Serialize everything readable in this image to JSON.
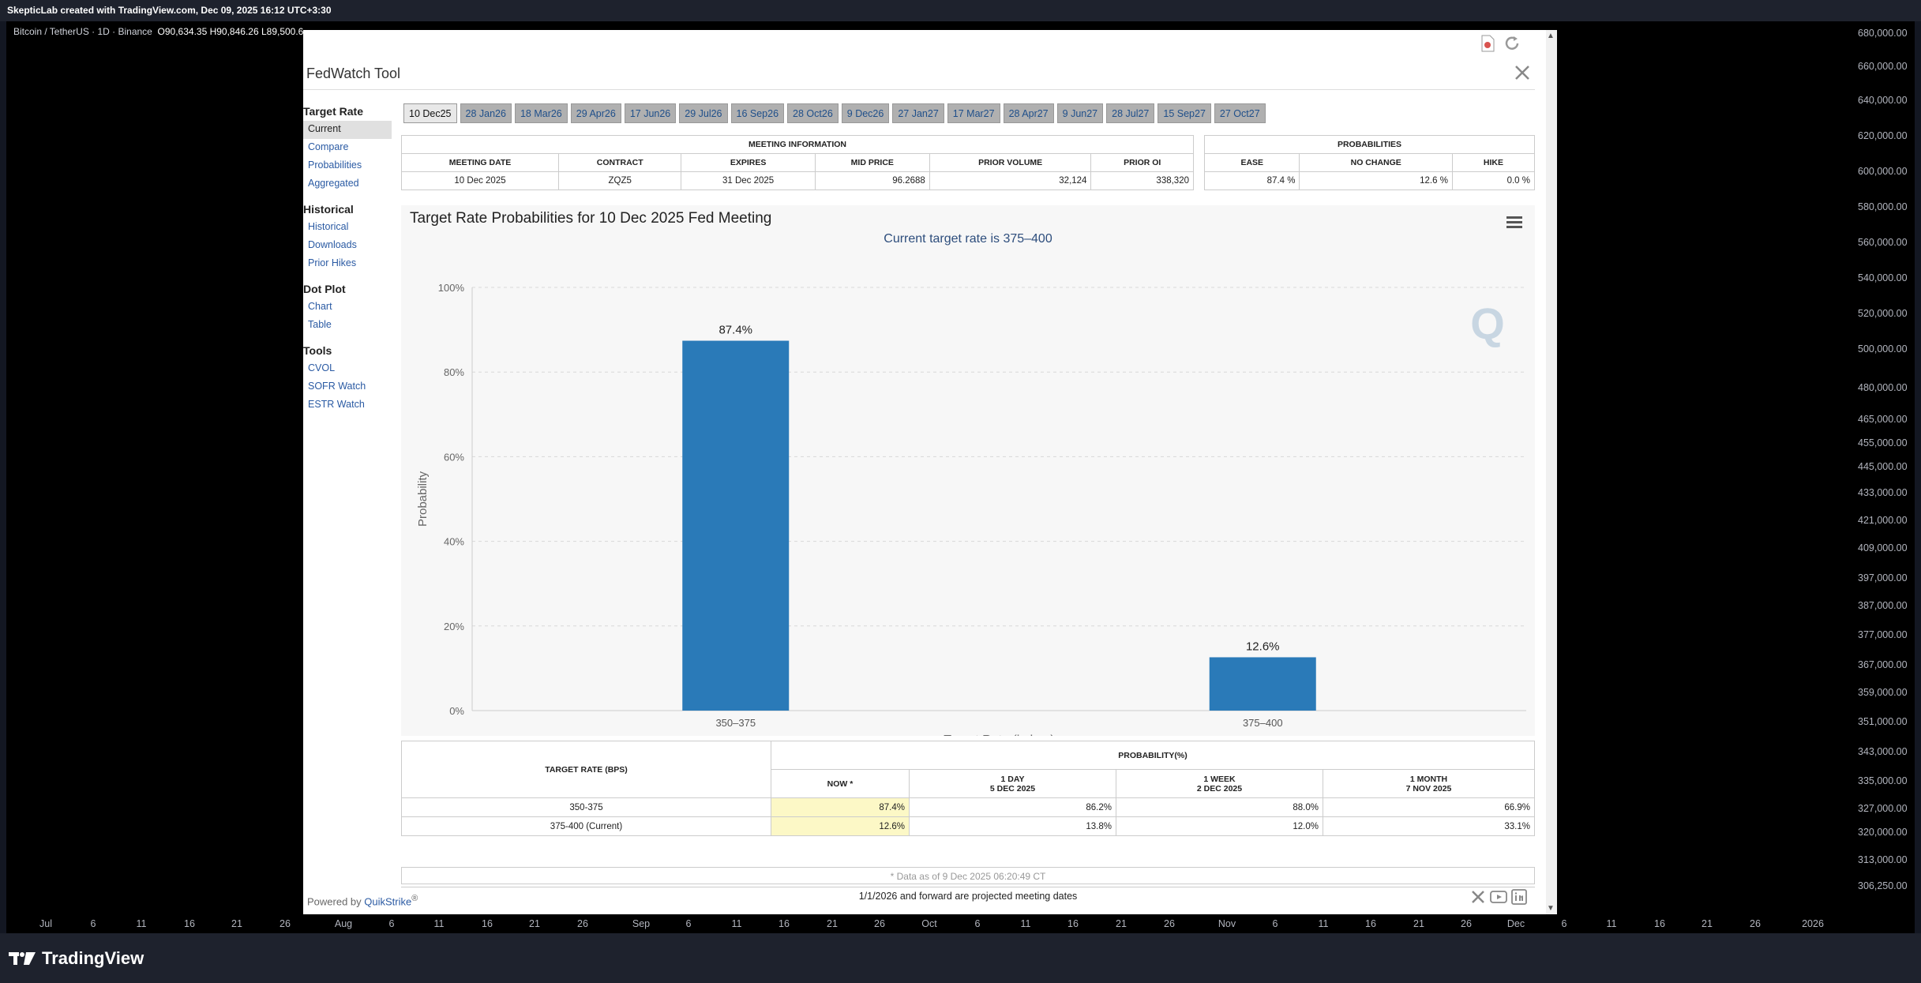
{
  "tv": {
    "header_text": "SkepticLab created with TradingView.com, Dec 09, 2025 16:12 UTC+3:30",
    "symbol": "Bitcoin / TetherUS · 1D · Binance",
    "ohlc": "O90,634.35  H90,846.26  L89,500.6",
    "price_labels": [
      "680,000.00",
      "660,000.00",
      "640,000.00",
      "620,000.00",
      "600,000.00",
      "580,000.00",
      "560,000.00",
      "540,000.00",
      "520,000.00",
      "500,000.00",
      "480,000.00",
      "465,000.00",
      "455,000.00",
      "445,000.00",
      "433,000.00",
      "421,000.00",
      "409,000.00",
      "397,000.00",
      "387,000.00",
      "377,000.00",
      "367,000.00",
      "359,000.00",
      "351,000.00",
      "343,000.00",
      "335,000.00",
      "327,000.00",
      "320,000.00",
      "313,000.00",
      "306,250.00"
    ],
    "time_labels": [
      "Jul",
      "6",
      "11",
      "16",
      "21",
      "26",
      "Aug",
      "6",
      "11",
      "16",
      "21",
      "26",
      "Sep",
      "6",
      "11",
      "16",
      "21",
      "26",
      "Oct",
      "6",
      "11",
      "16",
      "21",
      "26",
      "Nov",
      "6",
      "11",
      "16",
      "21",
      "26",
      "Dec",
      "6",
      "11",
      "16",
      "21",
      "26",
      "2026"
    ],
    "brand": "TradingView"
  },
  "fedwatch": {
    "title": "FedWatch Tool",
    "nav": [
      {
        "heading": "Target Rate",
        "items": [
          "Current",
          "Compare",
          "Probabilities",
          "Aggregated"
        ]
      },
      {
        "heading": "Historical",
        "items": [
          "Historical",
          "Downloads",
          "Prior Hikes"
        ]
      },
      {
        "heading": "Dot Plot",
        "items": [
          "Chart",
          "Table"
        ]
      },
      {
        "heading": "Tools",
        "items": [
          "CVOL",
          "SOFR Watch",
          "ESTR Watch"
        ]
      }
    ],
    "tabs": [
      "10 Dec25",
      "28 Jan26",
      "18 Mar26",
      "29 Apr26",
      "17 Jun26",
      "29 Jul26",
      "16 Sep26",
      "28 Oct26",
      "9 Dec26",
      "27 Jan27",
      "17 Mar27",
      "28 Apr27",
      "9 Jun27",
      "28 Jul27",
      "15 Sep27",
      "27 Oct27"
    ],
    "meeting": {
      "section": "MEETING INFORMATION",
      "headers": [
        "MEETING DATE",
        "CONTRACT",
        "EXPIRES",
        "MID PRICE",
        "PRIOR VOLUME",
        "PRIOR OI"
      ],
      "row": [
        "10 Dec 2025",
        "ZQZ5",
        "31 Dec 2025",
        "96.2688",
        "32,124",
        "338,320"
      ]
    },
    "probabilities": {
      "section": "PROBABILITIES",
      "headers": [
        "EASE",
        "NO CHANGE",
        "HIKE"
      ],
      "row": [
        "87.4 %",
        "12.6 %",
        "0.0 %"
      ]
    },
    "rate_table": {
      "section": "PROBABILITY(%)",
      "target_header": "TARGET RATE (BPS)",
      "col_now": "NOW *",
      "col_1day": [
        "1 DAY",
        "5 DEC 2025"
      ],
      "col_1week": [
        "1 WEEK",
        "2 DEC 2025"
      ],
      "col_1month": [
        "1 MONTH",
        "7 NOV 2025"
      ],
      "rows": [
        [
          "350-375",
          "87.4%",
          "86.2%",
          "88.0%",
          "66.9%"
        ],
        [
          "375-400 (Current)",
          "12.6%",
          "13.8%",
          "12.0%",
          "33.1%"
        ]
      ],
      "note": "* Data as of 9 Dec 2025 06:20:49 CT",
      "projected_note": "1/1/2026 and forward are projected meeting dates"
    },
    "powered_prefix": "Powered by ",
    "powered_brand": "QuikStrike",
    "powered_suffix": "®"
  },
  "chart_data": {
    "type": "bar",
    "title": "Target Rate Probabilities for 10 Dec 2025 Fed Meeting",
    "subtitle": "Current target rate is 375–400",
    "categories": [
      "350–375",
      "375–400"
    ],
    "values": [
      87.4,
      12.6
    ],
    "value_labels": [
      "87.4%",
      "12.6%"
    ],
    "xlabel": "Target Rate (in bps)",
    "ylabel": "Probability",
    "ylim": [
      0,
      100
    ],
    "yticks": [
      "0%",
      "20%",
      "40%",
      "60%",
      "80%",
      "100%"
    ],
    "grid": true,
    "bar_color": "#2a7ab8"
  }
}
